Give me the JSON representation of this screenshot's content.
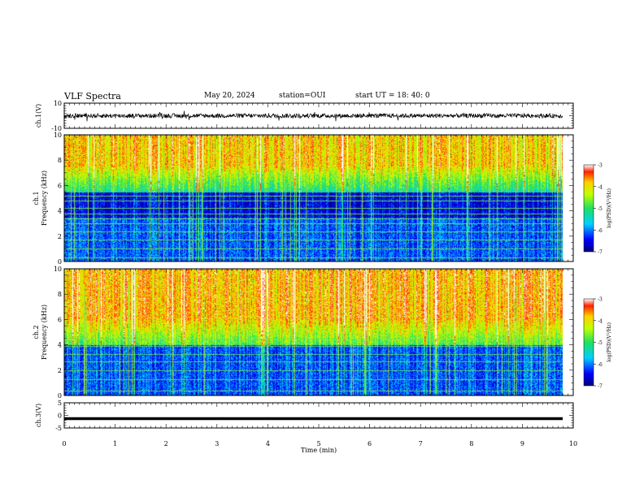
{
  "header": {
    "title": "VLF Spectra",
    "date": "May 20, 2024",
    "station": "station=OUI",
    "start": "start  UT  =   18: 40: 0"
  },
  "chart_data": [
    {
      "type": "line",
      "panel": "ch.1 waveform",
      "ylabel": "ch.1(V)",
      "ylim": [
        -10,
        10
      ],
      "yticks": [
        "10",
        "-10"
      ],
      "xlim": [
        0,
        10
      ],
      "series": [
        {
          "values_note_level": 0
        }
      ]
    },
    {
      "type": "heatmap",
      "panel": "ch.1 spectrogram",
      "ylabel": "ch.1 Frequency (kHz)",
      "ylabel_line1": "ch.1",
      "ylabel_line2": "Frequency (kHz)",
      "ylim": [
        0,
        10
      ],
      "yticks": [
        "0",
        "2",
        "4",
        "6",
        "8",
        "10"
      ],
      "xlim": [
        0,
        10
      ],
      "data_end_min": 9.8,
      "colorbar": {
        "label": "log(PSD)(V²/Hz)",
        "range": [
          -7,
          -3
        ],
        "ticks": [
          "-3",
          "-4",
          "-5",
          "-6",
          "-7"
        ]
      }
    },
    {
      "type": "heatmap",
      "panel": "ch.2 spectrogram",
      "ylabel": "ch.2 Frequency (kHz)",
      "ylabel_line1": "ch.2",
      "ylabel_line2": "Frequency (kHz)",
      "ylim": [
        0,
        10
      ],
      "yticks": [
        "0",
        "2",
        "4",
        "6",
        "8",
        "10"
      ],
      "xlim": [
        0,
        10
      ],
      "data_end_min": 9.8,
      "colorbar": {
        "label": "log(PSD)(V²/Hz)",
        "range": [
          -7,
          -3
        ],
        "ticks": [
          "-3",
          "-4",
          "-5",
          "-6",
          "-7"
        ]
      }
    },
    {
      "type": "line",
      "panel": "ch.3 waveform",
      "ylabel": "ch.3(V)",
      "ylim": [
        -5,
        5
      ],
      "yticks": [
        "5",
        "0",
        "-5"
      ],
      "xlim": [
        0,
        10
      ],
      "series": [
        {
          "level": -1.3
        }
      ]
    }
  ],
  "x_axis": {
    "label": "Time  (min)",
    "ticks": [
      "0",
      "1",
      "2",
      "3",
      "4",
      "5",
      "6",
      "7",
      "8",
      "9",
      "10"
    ]
  }
}
